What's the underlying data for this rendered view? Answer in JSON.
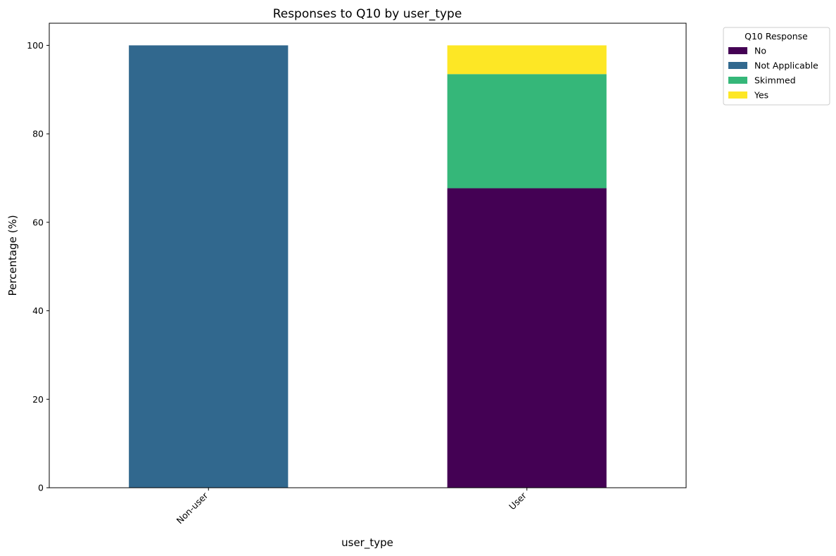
{
  "chart_data": {
    "type": "bar",
    "stacked": true,
    "title": "Responses to Q10 by user_type",
    "xlabel": "user_type",
    "ylabel": "Percentage (%)",
    "categories": [
      "Non-user",
      "User"
    ],
    "ylim": [
      0,
      105
    ],
    "yticks": [
      0,
      20,
      40,
      60,
      80,
      100
    ],
    "grid": false,
    "legend": {
      "title": "Q10 Response",
      "placement": "outside top-right"
    },
    "series": [
      {
        "name": "No",
        "color": "#440154",
        "values": [
          0,
          67.7
        ]
      },
      {
        "name": "Not Applicable",
        "color": "#31688e",
        "values": [
          100,
          0
        ]
      },
      {
        "name": "Skimmed",
        "color": "#35b779",
        "values": [
          0,
          25.8
        ]
      },
      {
        "name": "Yes",
        "color": "#fde725",
        "values": [
          0,
          6.5
        ]
      }
    ]
  }
}
